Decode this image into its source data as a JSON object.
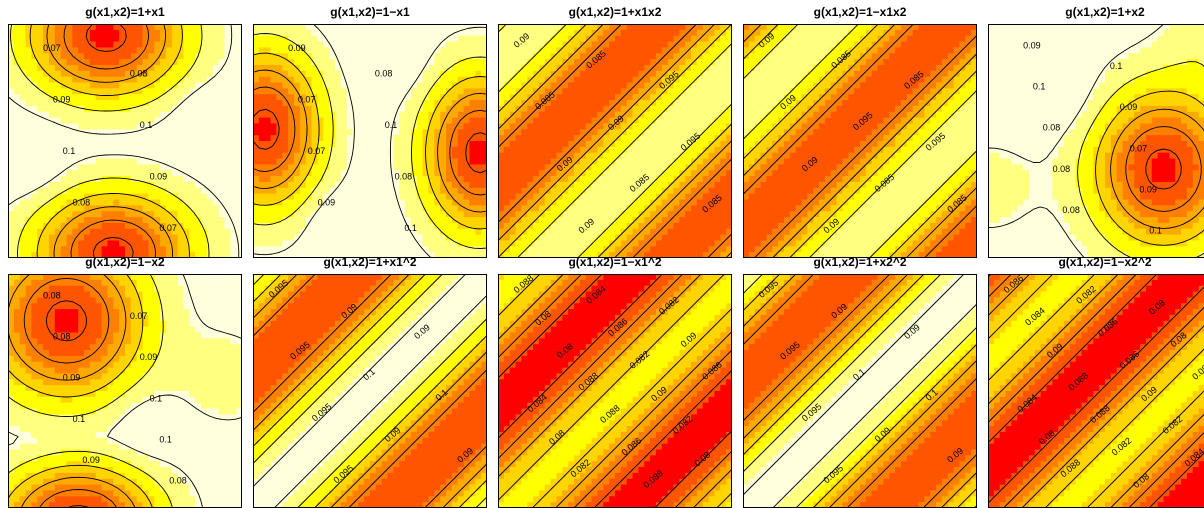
{
  "chart_data": [
    {
      "type": "heatmap",
      "title": "g(x1,x2)=1+x1",
      "pattern": "blobs_A",
      "contour_labels": [
        "0.07",
        "0.08",
        "0.09",
        "0.1",
        "0.1",
        "0.09",
        "0.08",
        "0.07"
      ]
    },
    {
      "type": "heatmap",
      "title": "g(x1,x2)=1−x1",
      "pattern": "blobs_B",
      "contour_labels": [
        "0.09",
        "0.08",
        "0.07",
        "0.1",
        "0.07",
        "0.08",
        "0.09",
        "0.1"
      ]
    },
    {
      "type": "heatmap",
      "title": "g(x1,x2)=1+x1x2",
      "pattern": "diag_A",
      "contour_labels": [
        "0.09",
        "0.085",
        "0.095",
        "0.085",
        "0.09",
        "0.095",
        "0.09",
        "0.085",
        "0.085",
        "0.09"
      ]
    },
    {
      "type": "heatmap",
      "title": "g(x1,x2)=1−x1x2",
      "pattern": "diag_B",
      "contour_labels": [
        "0.09",
        "0.085",
        "0.085",
        "0.09",
        "0.095",
        "0.095",
        "0.09",
        "0.085",
        "0.085",
        "0.09"
      ]
    },
    {
      "type": "heatmap",
      "title": "g(x1,x2)=1+x2",
      "pattern": "blobs_C",
      "contour_labels": [
        "0.09",
        "0.1",
        "0.1",
        "0.09",
        "0.08",
        "0.07",
        "0.08",
        "0.09",
        "0.08",
        "0.1"
      ]
    },
    {
      "type": "heatmap",
      "title": "g(x1,x2)=1−x2",
      "pattern": "blobs_D",
      "contour_labels": [
        "0.08",
        "0.07",
        "0.08",
        "0.09",
        "0.09",
        "0.1",
        "0.1",
        "0.1",
        "0.09",
        "0.08"
      ]
    },
    {
      "type": "heatmap",
      "title": "g(x1,x2)=1+x1^2",
      "pattern": "diag_C",
      "contour_labels": [
        "0.095",
        "0.09",
        "0.09",
        "0.095",
        "0.1",
        "0.1",
        "0.095",
        "0.09",
        "0.09",
        "0.095"
      ]
    },
    {
      "type": "heatmap",
      "title": "g(x1,x2)=1−x1^2",
      "pattern": "diag_D",
      "contour_labels": [
        "0.088",
        "0.084",
        "0.082",
        "0.08",
        "0.086",
        "0.09",
        "0.08",
        "0.082",
        "0.086",
        "0.088",
        "0.09",
        "0.084",
        "0.088",
        "0.082",
        "0.08",
        "0.086",
        "0.08",
        "0.082",
        "0.088"
      ]
    },
    {
      "type": "heatmap",
      "title": "g(x1,x2)=1+x2^2",
      "pattern": "diag_E",
      "contour_labels": [
        "0.095",
        "0.09",
        "0.09",
        "0.095",
        "0.1",
        "0.1",
        "0.095",
        "0.09",
        "0.09",
        "0.095"
      ]
    },
    {
      "type": "heatmap",
      "title": "g(x1,x2)=1−x2^2",
      "pattern": "diag_F",
      "contour_labels": [
        "0.086",
        "0.082",
        "0.08",
        "0.084",
        "0.086",
        "0.08",
        "0.09",
        "0.086",
        "0.082",
        "0.088",
        "0.09",
        "0.084",
        "0.088",
        "0.082",
        "0.08",
        "0.082",
        "0.084",
        "0.088",
        "0.08"
      ]
    }
  ],
  "colors": {
    "levels": [
      "#FF0000",
      "#FF5500",
      "#FF8000",
      "#FFAA00",
      "#FFD500",
      "#FFFF00",
      "#FFFF80",
      "#FFFFDD"
    ],
    "contour": "#000000"
  }
}
